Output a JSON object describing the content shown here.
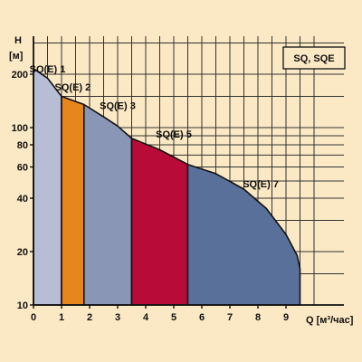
{
  "chart_data": {
    "type": "area",
    "title": "SQ, SQE",
    "ylabel_top": "H",
    "ylabel_unit": "[м]",
    "xlabel": "Q [м³/час]",
    "y_scale": "log",
    "xlim": [
      0,
      10
    ],
    "ylim": [
      10,
      300
    ],
    "x_ticks": [
      0,
      1,
      2,
      3,
      4,
      5,
      6,
      7,
      8,
      9
    ],
    "y_ticks": [
      10,
      20,
      40,
      60,
      80,
      100,
      200
    ],
    "grid": true,
    "envelope": [
      {
        "x": 0,
        "y": 215
      },
      {
        "x": 0.5,
        "y": 190
      },
      {
        "x": 1.0,
        "y": 150
      },
      {
        "x": 1.8,
        "y": 135
      },
      {
        "x": 2.5,
        "y": 115
      },
      {
        "x": 3.0,
        "y": 102
      },
      {
        "x": 3.5,
        "y": 87
      },
      {
        "x": 4.5,
        "y": 75
      },
      {
        "x": 5.5,
        "y": 62
      },
      {
        "x": 6.5,
        "y": 55
      },
      {
        "x": 7.5,
        "y": 45
      },
      {
        "x": 8.3,
        "y": 35
      },
      {
        "x": 9.0,
        "y": 25
      },
      {
        "x": 9.4,
        "y": 19
      },
      {
        "x": 9.5,
        "y": 16
      },
      {
        "x": 9.5,
        "y": 10
      }
    ],
    "series": [
      {
        "name": "SQ(E) 1",
        "x_range": [
          0,
          1.0
        ],
        "color": "#b8bdd6",
        "label_pos": [
          0.5,
          205
        ]
      },
      {
        "name": "SQ(E) 2",
        "x_range": [
          1.0,
          1.8
        ],
        "color": "#e8861e",
        "label_pos": [
          1.4,
          162
        ]
      },
      {
        "name": "SQ(E) 3",
        "x_range": [
          1.8,
          3.5
        ],
        "color": "#8996b6",
        "label_pos": [
          3.0,
          127
        ]
      },
      {
        "name": "SQ(E) 5",
        "x_range": [
          3.5,
          5.5
        ],
        "color": "#b80b38",
        "label_pos": [
          5.0,
          88
        ]
      },
      {
        "name": "SQ(E) 7",
        "x_range": [
          5.5,
          9.5
        ],
        "color": "#59719a",
        "label_pos": [
          8.1,
          46
        ]
      }
    ]
  }
}
